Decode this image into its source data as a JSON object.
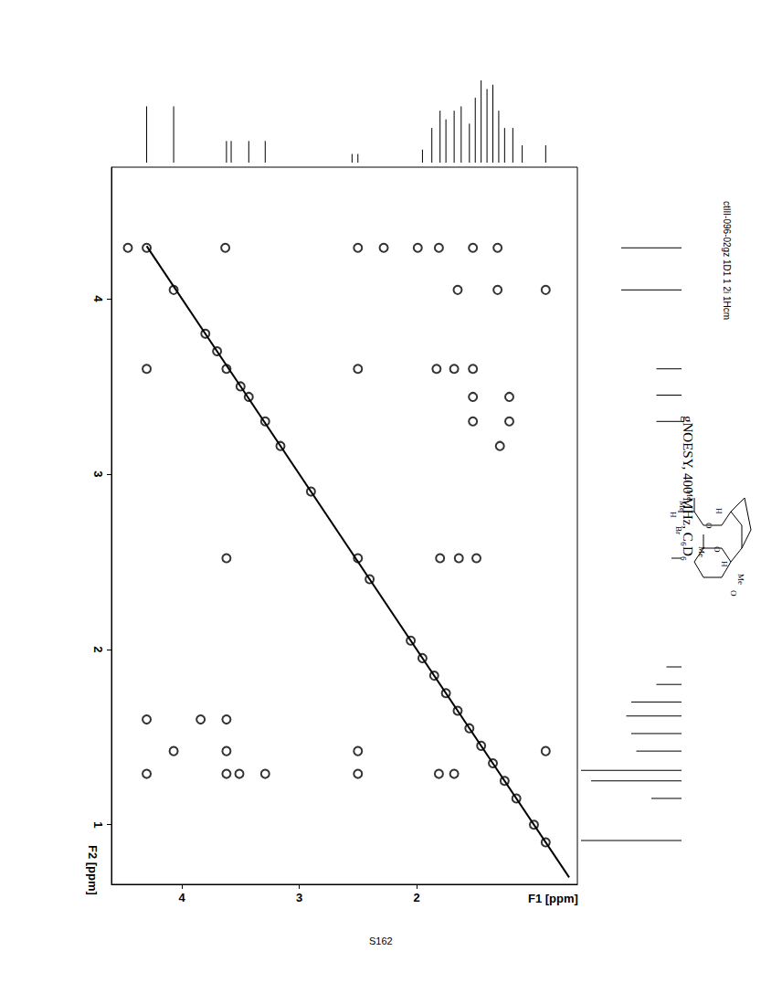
{
  "chart_data": {
    "type": "scatter",
    "title": "gNOESY, 400 MHz, C₆D₆",
    "file_label": "ctIII-096-02gz 1D1 1 2i 1Hcm",
    "page": "S162",
    "x_label": "F1 [ppm]",
    "y_label": "F2 [ppm]",
    "xlim": [
      4.6,
      0.63
    ],
    "xticks": [
      4,
      3,
      2
    ],
    "ylim": [
      4.75,
      0.66
    ],
    "yticks": [
      4,
      3,
      2,
      1
    ],
    "grid": false,
    "color": "#000000",
    "marker": "emptyCircle",
    "cross_peaks": {
      "x": [
        4.46,
        3.63,
        2.5,
        2.28,
        1.99,
        1.81,
        1.52,
        1.31,
        1.65,
        1.31,
        0.9,
        4.3,
        2.5,
        1.83,
        1.68,
        1.52,
        1.52,
        1.21,
        1.52,
        1.21,
        1.29,
        3.62,
        1.8,
        1.64,
        1.49,
        4.3,
        3.84,
        3.62,
        4.07,
        3.62,
        2.5,
        0.9,
        4.3,
        3.62,
        3.51,
        3.29,
        2.5,
        1.81,
        1.68,
        4.3,
        4.07,
        3.8,
        3.7,
        3.62,
        3.5,
        3.43,
        3.29,
        3.16,
        2.9,
        2.5,
        2.4,
        2.05,
        1.95,
        1.85,
        1.75,
        1.65,
        1.55,
        1.45,
        1.35,
        1.25,
        1.15,
        1.0,
        0.9
      ],
      "y": [
        4.29,
        4.29,
        4.29,
        4.29,
        4.29,
        4.29,
        4.29,
        4.29,
        4.05,
        4.05,
        4.05,
        3.6,
        3.6,
        3.6,
        3.6,
        3.6,
        3.44,
        3.44,
        3.3,
        3.3,
        3.16,
        2.52,
        2.52,
        2.52,
        2.52,
        1.6,
        1.6,
        1.6,
        1.42,
        1.42,
        1.42,
        1.42,
        1.29,
        1.29,
        1.29,
        1.29,
        1.29,
        1.29,
        1.29,
        4.29,
        4.05,
        3.8,
        3.7,
        3.6,
        3.5,
        3.44,
        3.3,
        3.16,
        2.9,
        2.52,
        2.4,
        2.05,
        1.95,
        1.85,
        1.75,
        1.65,
        1.55,
        1.45,
        1.35,
        1.25,
        1.15,
        1.0,
        0.9
      ]
    },
    "diagonal": {
      "x": [
        4.3,
        0.7
      ],
      "y": [
        4.3,
        0.7
      ]
    },
    "f1_projection": {
      "ppm": [
        4.3,
        4.07,
        3.62,
        3.58,
        3.43,
        3.29,
        2.55,
        2.5,
        1.95,
        1.87,
        1.8,
        1.75,
        1.68,
        1.62,
        1.55,
        1.5,
        1.45,
        1.4,
        1.35,
        1.3,
        1.25,
        1.18,
        1.1,
        0.9
      ],
      "height": [
        65,
        65,
        25,
        25,
        25,
        25,
        10,
        10,
        15,
        40,
        60,
        50,
        60,
        65,
        45,
        75,
        95,
        85,
        90,
        60,
        40,
        40,
        20,
        20
      ]
    },
    "f2_projection": {
      "ppm": [
        4.29,
        4.05,
        3.6,
        3.45,
        3.3,
        2.52,
        1.9,
        1.8,
        1.7,
        1.62,
        1.52,
        1.42,
        1.31,
        1.25,
        1.15,
        0.91
      ],
      "height": [
        60,
        60,
        25,
        25,
        25,
        10,
        15,
        25,
        50,
        55,
        50,
        45,
        100,
        90,
        30,
        100
      ]
    },
    "structure_labels": [
      "Me",
      "Me",
      "H",
      "Br",
      "O",
      "H",
      "Me",
      "O",
      "H",
      "Me",
      "O"
    ]
  }
}
